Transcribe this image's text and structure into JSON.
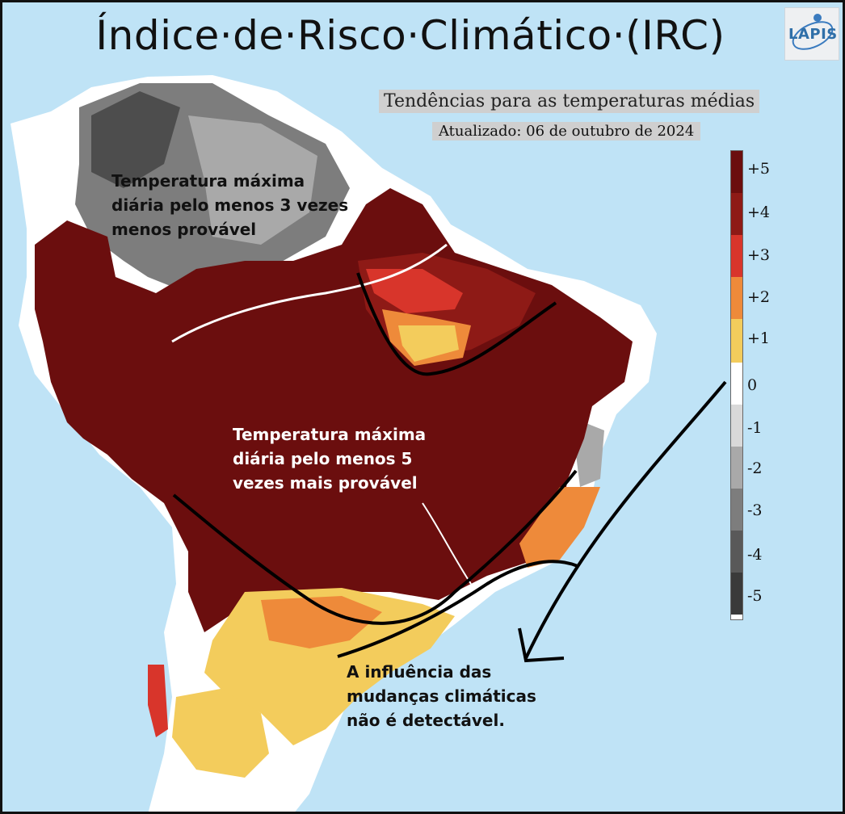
{
  "title": "Índice·de·Risco·Climático·(IRC)",
  "subtitle": "Tendências para as temperaturas médias",
  "updated": "Atualizado: 06 de outubro de 2024",
  "logo": {
    "text": "LAPIS",
    "icon": "lapis-logo"
  },
  "annotations": {
    "north": [
      "Temperatura máxima",
      "diária pelo menos 3 vezes",
      "menos provável"
    ],
    "center": [
      "Temperatura máxima",
      "diária pelo menos 5",
      "vezes mais provável"
    ],
    "south": [
      "A influência das",
      "mudanças climáticas",
      "não é detectável."
    ]
  },
  "legend": {
    "labels": [
      "+5",
      "+4",
      "+3",
      "+2",
      "+1",
      "0",
      "-1",
      "-2",
      "-3",
      "-4",
      "-5"
    ],
    "colors": [
      "#6b0e0e",
      "#8e1a16",
      "#d8352b",
      "#ee8a3a",
      "#f3cc5c",
      "#ffffff",
      "#d9d9d9",
      "#a9a9a9",
      "#7d7d7d",
      "#595959",
      "#3a3a3a"
    ]
  },
  "colors": {
    "ocean": "#bfe3f6",
    "land_neutral": "#ffffff",
    "high": "#6b0e0e",
    "mid": "#d8352b",
    "low": "#f3cc5c",
    "cool": "#7d7d7d"
  }
}
